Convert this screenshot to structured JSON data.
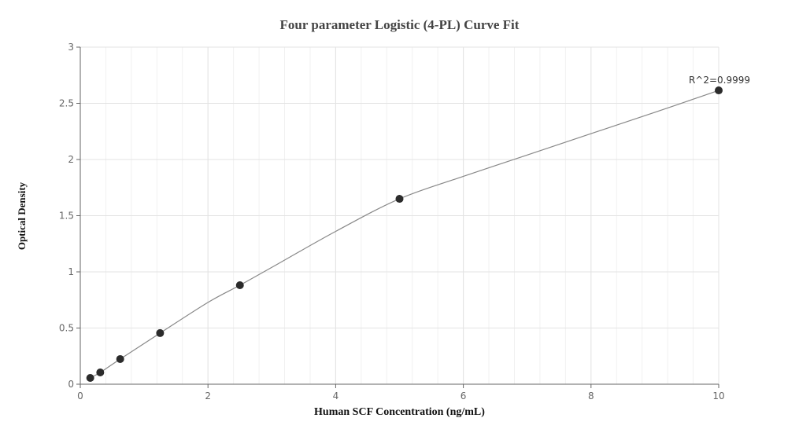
{
  "chart_data": {
    "type": "scatter",
    "title": "Four parameter Logistic (4-PL) Curve Fit",
    "xlabel": "Human SCF Concentration (ng/mL)",
    "ylabel": "Optical Density",
    "xlim": [
      0,
      10
    ],
    "ylim": [
      0,
      3
    ],
    "x_ticks": [
      0,
      2,
      4,
      6,
      8,
      10
    ],
    "y_ticks": [
      0,
      0.5,
      1,
      1.5,
      2,
      2.5,
      3
    ],
    "x_tick_labels": [
      "0",
      "2",
      "4",
      "6",
      "8",
      "10"
    ],
    "y_tick_labels": [
      "0",
      "0.5",
      "1",
      "1.5",
      "2",
      "2.5",
      "3"
    ],
    "grid": true,
    "x_minor_step": 0.4,
    "legend": null,
    "series": [
      {
        "name": "Standards",
        "marker": "circle",
        "color": "#2b2b2b",
        "x": [
          0.156,
          0.3125,
          0.625,
          1.25,
          2.5,
          5,
          10
        ],
        "y": [
          0.056,
          0.105,
          0.224,
          0.455,
          0.881,
          1.65,
          2.615
        ]
      },
      {
        "name": "4-PL fit",
        "type": "line",
        "color": "#888888",
        "x": [
          0.156,
          0.3125,
          0.625,
          1.25,
          2.0,
          2.5,
          3.0,
          4.0,
          5.0,
          6.0,
          7.0,
          8.0,
          9.0,
          10.0
        ],
        "y": [
          0.056,
          0.105,
          0.224,
          0.455,
          0.728,
          0.881,
          1.04,
          1.36,
          1.65,
          1.85,
          2.04,
          2.23,
          2.42,
          2.615
        ]
      }
    ],
    "annotations": [
      {
        "text": "R^2=0.9999",
        "x": 10,
        "y": 2.615
      }
    ]
  },
  "colors": {
    "axis": "#666666",
    "grid_major": "#e3e3e3",
    "grid_minor": "#f1f1f1",
    "marker": "#2b2b2b",
    "curve": "#888888",
    "tick_text": "#666666",
    "title_text": "#444444"
  }
}
